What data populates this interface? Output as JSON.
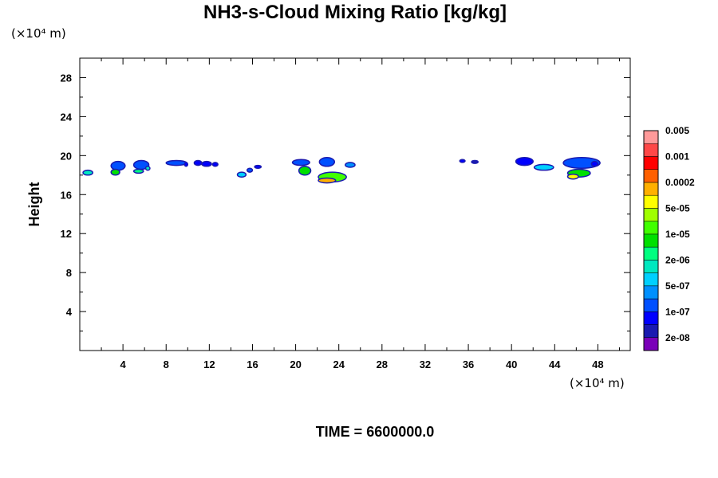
{
  "header": {
    "title": "NH3-s-Cloud Mixing Ratio [kg/kg]",
    "y_unit": "(×10⁴ m)",
    "x_unit": "(×10⁴ m)"
  },
  "footer": {
    "time_label": "TIME = 6600000.0"
  },
  "chart_data": {
    "type": "heatmap",
    "title": "NH3-s-Cloud Mixing Ratio [kg/kg]",
    "xlabel": "",
    "ylabel": "Height",
    "xlim": [
      0,
      51
    ],
    "ylim": [
      0,
      30
    ],
    "x_ticks": [
      4,
      8,
      12,
      16,
      20,
      24,
      28,
      32,
      36,
      40,
      44,
      48
    ],
    "x_tick_labels": [
      "4",
      "8",
      "12",
      "16",
      "20",
      "24",
      "28",
      "32",
      "36",
      "40",
      "44",
      "48"
    ],
    "y_ticks": [
      4,
      8,
      12,
      16,
      20,
      24,
      28
    ],
    "y_tick_labels": [
      "4",
      "8",
      "12",
      "16",
      "20",
      "24",
      "28"
    ],
    "colorbar": {
      "colors": [
        "#7a00b8",
        "#1a1ab0",
        "#0000ff",
        "#0050ff",
        "#0090ff",
        "#00d0ff",
        "#00e8c0",
        "#00ff80",
        "#00e000",
        "#40ff00",
        "#a0ff00",
        "#ffff00",
        "#ffb000",
        "#ff6000",
        "#ff0000",
        "#ff4848",
        "#ff9a9a"
      ],
      "labels": [
        "2e-08",
        "1e-07",
        "5e-07",
        "2e-06",
        "1e-05",
        "5e-05",
        "0.0002",
        "0.001",
        "0.005"
      ]
    },
    "cloud_patches": [
      {
        "x": 0.3,
        "y": 18.0,
        "w": 0.9,
        "h": 0.5,
        "level": 6
      },
      {
        "x": 2.9,
        "y": 18.5,
        "w": 1.3,
        "h": 0.9,
        "level": 3
      },
      {
        "x": 2.9,
        "y": 18.0,
        "w": 0.8,
        "h": 0.6,
        "level": 8
      },
      {
        "x": 5.0,
        "y": 18.6,
        "w": 1.4,
        "h": 0.9,
        "level": 3
      },
      {
        "x": 5.0,
        "y": 18.2,
        "w": 0.9,
        "h": 0.4,
        "level": 7
      },
      {
        "x": 6.1,
        "y": 18.5,
        "w": 0.4,
        "h": 0.4,
        "level": 6
      },
      {
        "x": 8.0,
        "y": 19.0,
        "w": 1.9,
        "h": 0.5,
        "level": 3
      },
      {
        "x": 9.7,
        "y": 18.9,
        "w": 0.3,
        "h": 0.4,
        "level": 2
      },
      {
        "x": 10.6,
        "y": 19.0,
        "w": 0.7,
        "h": 0.5,
        "level": 2
      },
      {
        "x": 11.3,
        "y": 18.9,
        "w": 0.9,
        "h": 0.5,
        "level": 2
      },
      {
        "x": 12.3,
        "y": 18.9,
        "w": 0.5,
        "h": 0.4,
        "level": 2
      },
      {
        "x": 14.6,
        "y": 17.8,
        "w": 0.8,
        "h": 0.5,
        "level": 5
      },
      {
        "x": 15.5,
        "y": 18.3,
        "w": 0.5,
        "h": 0.4,
        "level": 3
      },
      {
        "x": 16.2,
        "y": 18.7,
        "w": 0.6,
        "h": 0.3,
        "level": 2
      },
      {
        "x": 19.7,
        "y": 19.0,
        "w": 1.6,
        "h": 0.6,
        "level": 3
      },
      {
        "x": 20.3,
        "y": 18.0,
        "w": 1.1,
        "h": 0.9,
        "level": 8
      },
      {
        "x": 22.2,
        "y": 18.9,
        "w": 1.4,
        "h": 0.9,
        "level": 3
      },
      {
        "x": 22.1,
        "y": 17.3,
        "w": 2.6,
        "h": 1.0,
        "level": 9
      },
      {
        "x": 22.1,
        "y": 17.2,
        "w": 1.6,
        "h": 0.5,
        "level": 12
      },
      {
        "x": 24.6,
        "y": 18.8,
        "w": 0.9,
        "h": 0.5,
        "level": 4
      },
      {
        "x": 35.2,
        "y": 19.3,
        "w": 0.5,
        "h": 0.3,
        "level": 2
      },
      {
        "x": 36.3,
        "y": 19.2,
        "w": 0.6,
        "h": 0.3,
        "level": 1
      },
      {
        "x": 40.4,
        "y": 19.0,
        "w": 1.6,
        "h": 0.8,
        "level": 2
      },
      {
        "x": 42.1,
        "y": 18.5,
        "w": 1.8,
        "h": 0.6,
        "level": 5
      },
      {
        "x": 44.8,
        "y": 18.7,
        "w": 3.4,
        "h": 1.1,
        "level": 3
      },
      {
        "x": 45.2,
        "y": 17.8,
        "w": 2.1,
        "h": 0.8,
        "level": 8
      },
      {
        "x": 45.2,
        "y": 17.6,
        "w": 1.0,
        "h": 0.5,
        "level": 11
      },
      {
        "x": 47.4,
        "y": 18.9,
        "w": 0.6,
        "h": 0.5,
        "level": 2
      }
    ]
  }
}
